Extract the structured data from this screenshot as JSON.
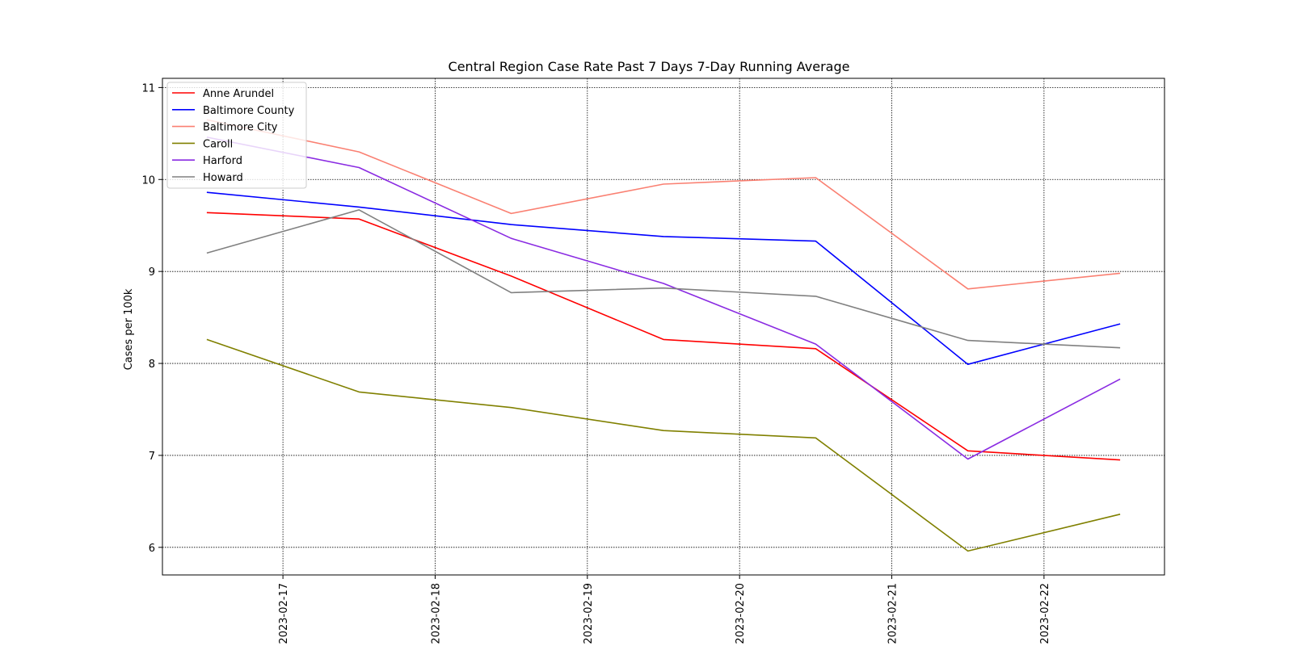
{
  "chart_data": {
    "type": "line",
    "title": "Central Region Case Rate  Past 7 Days 7-Day Running Average",
    "xlabel": "",
    "ylabel": "Cases per 100k",
    "x": [
      "2023-02-16 12:00",
      "2023-02-17 12:00",
      "2023-02-18 12:00",
      "2023-02-19 12:00",
      "2023-02-20 12:00",
      "2023-02-21 12:00",
      "2023-02-22 12:00"
    ],
    "x_ticks": [
      "2023-02-17",
      "2023-02-18",
      "2023-02-19",
      "2023-02-20",
      "2023-02-21",
      "2023-02-22"
    ],
    "xlim": [
      "2023-02-16 05:00",
      "2023-02-22 19:00"
    ],
    "y_ticks": [
      6,
      7,
      8,
      9,
      10,
      11
    ],
    "ylim": [
      5.7,
      11.1
    ],
    "grid": true,
    "legend_position": "upper-left",
    "series": [
      {
        "name": "Anne Arundel",
        "color": "#ff0000",
        "values": [
          9.64,
          9.57,
          8.95,
          8.26,
          8.16,
          7.05,
          6.95
        ]
      },
      {
        "name": "Baltimore County",
        "color": "#0000ff",
        "values": [
          9.86,
          9.7,
          9.51,
          9.38,
          9.33,
          7.99,
          8.43
        ]
      },
      {
        "name": "Baltimore City",
        "color": "#fa8072",
        "values": [
          10.65,
          10.3,
          9.63,
          9.95,
          10.02,
          8.81,
          8.98
        ]
      },
      {
        "name": "Caroll",
        "color": "#808000",
        "values": [
          8.26,
          7.69,
          7.52,
          7.27,
          7.19,
          5.96,
          6.36
        ]
      },
      {
        "name": "Harford",
        "color": "#8a2be2",
        "values": [
          10.46,
          10.13,
          9.36,
          8.87,
          8.21,
          6.96,
          7.83
        ]
      },
      {
        "name": "Howard",
        "color": "#808080",
        "values": [
          9.2,
          9.67,
          8.77,
          8.82,
          8.73,
          8.25,
          8.17
        ]
      }
    ]
  }
}
